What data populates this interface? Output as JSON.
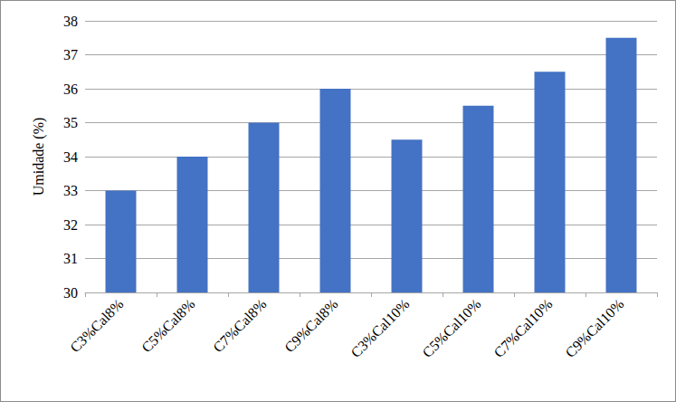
{
  "chart_data": {
    "type": "bar",
    "y_label": "Umidade (%)",
    "categories": [
      "C3%Cal8%",
      "C5%Cal8%",
      "C7%Cal8%",
      "C9%Cal8%",
      "C3%Cal10%",
      "C5%Cal10%",
      "C7%Cal10%",
      "C9%Cal10%"
    ],
    "values": [
      33,
      34,
      35,
      36,
      34.5,
      35.5,
      36.5,
      37.5
    ],
    "color": "#4472c4",
    "ylim": [
      30,
      38
    ],
    "yticks": [
      30,
      31,
      32,
      33,
      34,
      35,
      36,
      37,
      38
    ],
    "grid": true
  }
}
